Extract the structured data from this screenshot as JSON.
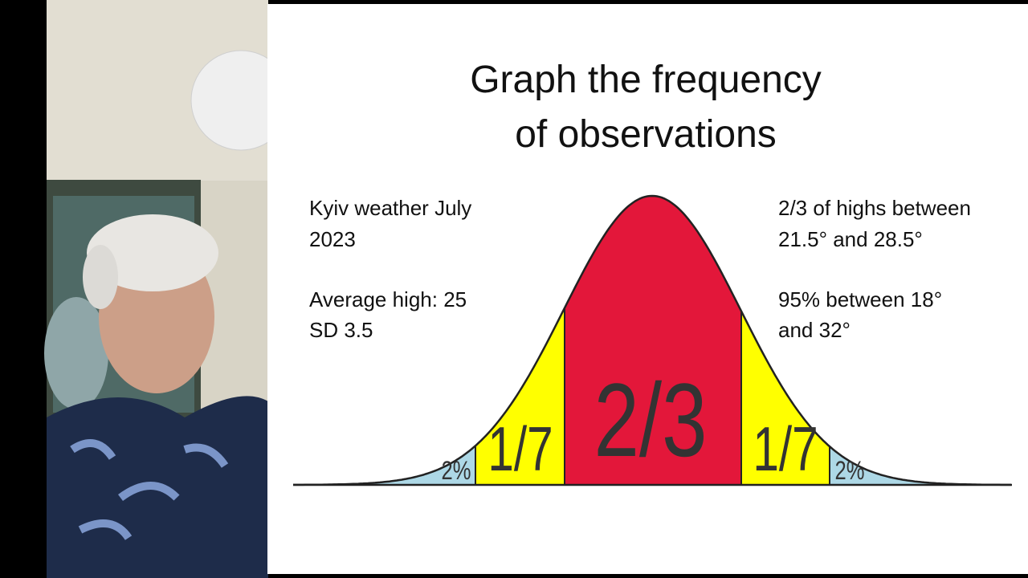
{
  "slide": {
    "title": [
      "Graph the frequency",
      "of observations"
    ],
    "left_notes": [
      [
        "Kyiv weather July",
        "2023"
      ],
      [
        "Average high: 25",
        "SD 3.5"
      ]
    ],
    "right_notes": [
      [
        "2/3 of highs between",
        "21.5° and 28.5°"
      ],
      [
        "95% between 18°",
        "and 32°"
      ]
    ],
    "curve_labels": [
      "2%",
      "1/7",
      "2/3",
      "1/7",
      "2%"
    ]
  }
}
